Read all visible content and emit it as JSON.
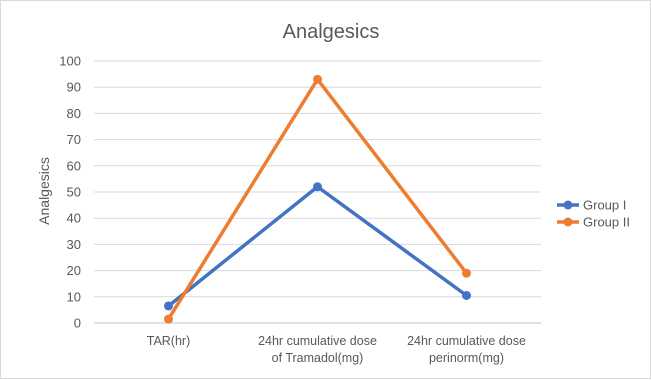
{
  "chart_data": {
    "type": "line",
    "title": "Analgesics",
    "ylabel": "Analgesics",
    "xlabel": "",
    "ylim": [
      0,
      100
    ],
    "yticks": [
      0,
      10,
      20,
      30,
      40,
      50,
      60,
      70,
      80,
      90,
      100
    ],
    "grid": true,
    "legend_position": "right",
    "categories": [
      [
        "TAR(hr)"
      ],
      [
        "24hr cumulative dose",
        "of Tramadol(mg)"
      ],
      [
        "24hr cumulative dose",
        "perinorm(mg)"
      ]
    ],
    "series": [
      {
        "name": "Group I",
        "values": [
          6.5,
          52,
          10.5
        ],
        "color": "#4472C4"
      },
      {
        "name": "Group II",
        "values": [
          1.5,
          93,
          19
        ],
        "color": "#ED7D31"
      }
    ]
  }
}
